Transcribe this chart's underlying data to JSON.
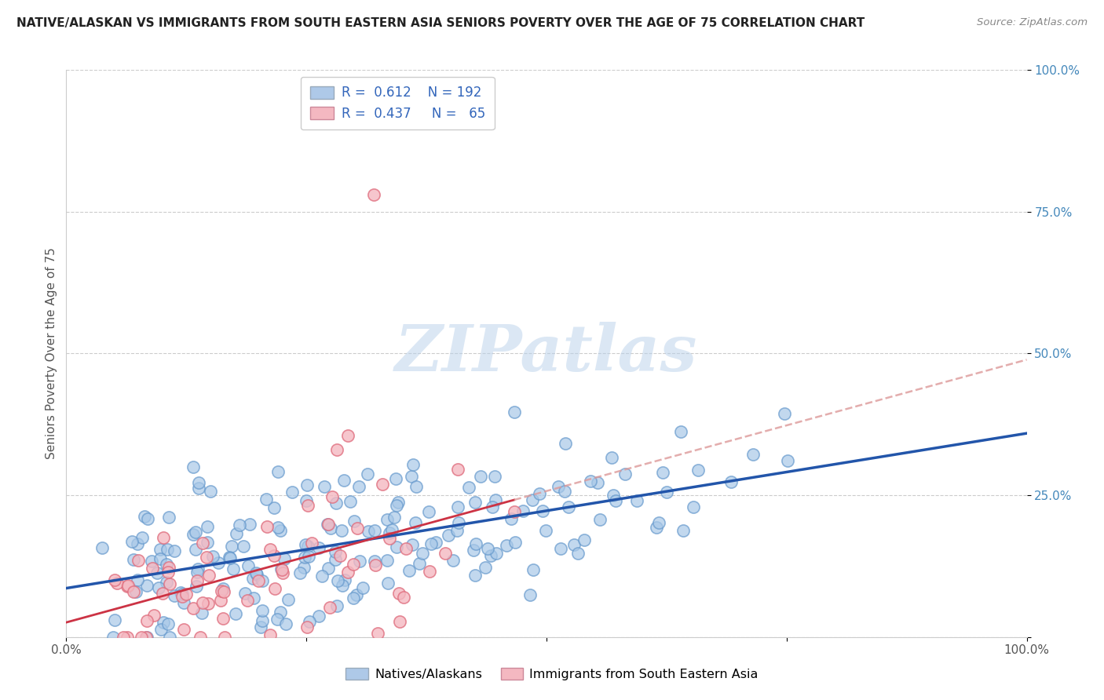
{
  "title": "NATIVE/ALASKAN VS IMMIGRANTS FROM SOUTH EASTERN ASIA SENIORS POVERTY OVER THE AGE OF 75 CORRELATION CHART",
  "source": "Source: ZipAtlas.com",
  "ylabel": "Seniors Poverty Over the Age of 75",
  "xlim": [
    0,
    1.0
  ],
  "ylim": [
    0,
    1.0
  ],
  "watermark_text": "ZIPatlas",
  "legend_blue_r": "0.612",
  "legend_blue_n": "192",
  "legend_pink_r": "0.437",
  "legend_pink_n": "65",
  "legend_label_blue": "Natives/Alaskans",
  "legend_label_pink": "Immigrants from South Eastern Asia",
  "blue_marker_color": "#a8c8e8",
  "blue_edge_color": "#6699cc",
  "pink_marker_color": "#f4b8c1",
  "pink_edge_color": "#e07080",
  "blue_line_color": "#2255aa",
  "pink_line_color": "#cc3344",
  "pink_dash_color": "#dd9999",
  "background_color": "#ffffff",
  "grid_color": "#cccccc",
  "title_fontsize": 11,
  "axis_label_fontsize": 11,
  "tick_fontsize": 11,
  "seed": 12345,
  "blue_n": 192,
  "pink_n": 65,
  "blue_r": 0.612,
  "pink_r": 0.437,
  "blue_slope": 0.28,
  "blue_intercept": 0.08,
  "pink_slope": 0.42,
  "pink_intercept": 0.04
}
